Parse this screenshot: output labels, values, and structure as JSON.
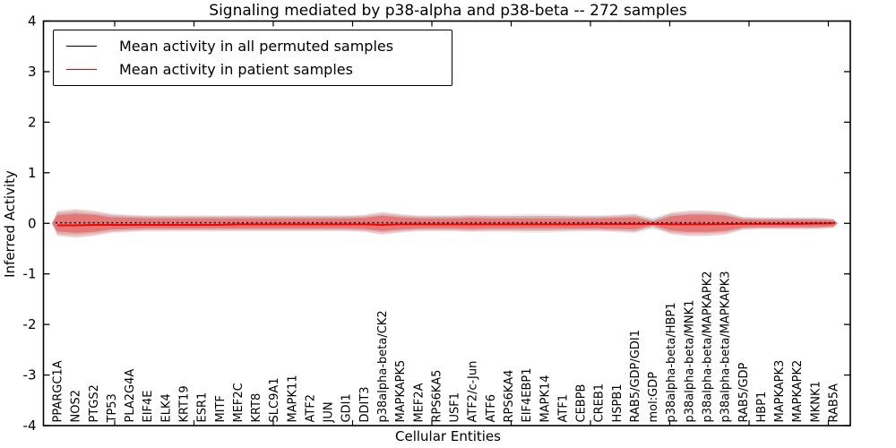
{
  "title": "Signaling mediated by p38-alpha and p38-beta -- 272 samples",
  "axes": {
    "x_label": "Cellular Entities",
    "y_label": "Inferred Activity",
    "y_tick_labels": [
      "4",
      "3",
      "2",
      "1",
      "0",
      "-1",
      "-2",
      "-3",
      "-4"
    ]
  },
  "legend": {
    "items": [
      {
        "label": "Mean activity in all permuted samples",
        "color": "#000000"
      },
      {
        "label": "Mean activity in patient samples",
        "color": "#ff0000"
      }
    ]
  },
  "chart_data": {
    "type": "line",
    "title": "Signaling mediated by p38-alpha and p38-beta -- 272 samples",
    "xlabel": "Cellular Entities",
    "ylabel": "Inferred Activity",
    "ylim": [
      -4,
      4
    ],
    "yticks": [
      4,
      3,
      2,
      1,
      0,
      -1,
      -2,
      -3,
      -4
    ],
    "legend_position": "upper left",
    "grid": false,
    "categories": [
      "PPARGC1A",
      "NOS2",
      "PTGS2",
      "TP53",
      "PLA2G4A",
      "EIF4E",
      "ELK4",
      "KRT19",
      "ESR1",
      "MITF",
      "MEF2C",
      "KRT8",
      "SLC9A1",
      "MAPK11",
      "ATF2",
      "JUN",
      "GDI1",
      "DDIT3",
      "p38alpha-beta/CK2",
      "MAPKAPK5",
      "MEF2A",
      "RPS6KA5",
      "USF1",
      "ATF2/c-Jun",
      "ATF6",
      "RPS6KA4",
      "EIF4EBP1",
      "MAPK14",
      "ATF1",
      "CEBPB",
      "CREB1",
      "HSPB1",
      "RAB5/GDP/GDI1",
      "mol:GDP",
      "p38alpha-beta/HBP1",
      "p38alpha-beta/MNK1",
      "p38alpha-beta/MAPKAPK2",
      "p38alpha-beta/MAPKAPK3",
      "RAB5/GDP",
      "HBP1",
      "MAPKAPK3",
      "MAPKAPK2",
      "MKNK1",
      "RAB5A"
    ],
    "series": [
      {
        "name": "Mean activity in all permuted samples",
        "color": "#000000",
        "style": "dotted",
        "values": [
          0.01,
          0.01,
          0.01,
          0.01,
          0.01,
          0.01,
          0.01,
          0.01,
          0.01,
          0.01,
          0.01,
          0.01,
          0.01,
          0.01,
          0.01,
          0.01,
          0.01,
          0.01,
          0.01,
          0.01,
          0.01,
          0.01,
          0.01,
          0.01,
          0.01,
          0.01,
          0.01,
          0.01,
          0.01,
          0.01,
          0.01,
          0.01,
          0.01,
          0.01,
          0.01,
          0.01,
          0.01,
          0.01,
          0.01,
          0.01,
          0.01,
          0.01,
          0.01,
          0.01
        ]
      },
      {
        "name": "Mean activity in patient samples",
        "color": "#ff0000",
        "style": "solid",
        "values": [
          -0.04,
          -0.04,
          -0.03,
          -0.03,
          -0.03,
          -0.03,
          -0.03,
          -0.03,
          -0.03,
          -0.03,
          -0.02,
          -0.02,
          -0.02,
          -0.02,
          -0.02,
          -0.02,
          -0.02,
          -0.02,
          -0.03,
          -0.02,
          -0.02,
          -0.02,
          -0.02,
          -0.02,
          -0.02,
          -0.02,
          -0.02,
          -0.02,
          -0.02,
          -0.02,
          -0.015,
          -0.015,
          -0.015,
          -0.01,
          -0.02,
          -0.02,
          -0.02,
          -0.015,
          -0.01,
          -0.01,
          -0.01,
          -0.01,
          -0.005,
          0.0
        ]
      }
    ],
    "bands": [
      {
        "name": "permuted-samples-spread",
        "color": "#000000",
        "opacity": 0.12,
        "halfwidths": [
          0.21,
          0.23,
          0.2,
          0.16,
          0.14,
          0.13,
          0.13,
          0.13,
          0.13,
          0.13,
          0.13,
          0.13,
          0.13,
          0.13,
          0.13,
          0.13,
          0.13,
          0.14,
          0.18,
          0.15,
          0.13,
          0.13,
          0.13,
          0.14,
          0.14,
          0.14,
          0.15,
          0.15,
          0.14,
          0.13,
          0.13,
          0.14,
          0.16,
          0.09,
          0.18,
          0.2,
          0.2,
          0.18,
          0.11,
          0.1,
          0.1,
          0.1,
          0.1,
          0.08
        ]
      },
      {
        "name": "patient-samples-spread",
        "color": "#ff0000",
        "opacity": 0.32,
        "halfwidths": [
          0.16,
          0.19,
          0.17,
          0.12,
          0.11,
          0.1,
          0.1,
          0.1,
          0.1,
          0.1,
          0.1,
          0.1,
          0.1,
          0.1,
          0.1,
          0.1,
          0.1,
          0.11,
          0.15,
          0.12,
          0.1,
          0.1,
          0.1,
          0.11,
          0.1,
          0.1,
          0.1,
          0.1,
          0.1,
          0.1,
          0.1,
          0.11,
          0.12,
          0.04,
          0.14,
          0.17,
          0.17,
          0.15,
          0.08,
          0.07,
          0.07,
          0.07,
          0.07,
          0.06
        ]
      }
    ]
  }
}
